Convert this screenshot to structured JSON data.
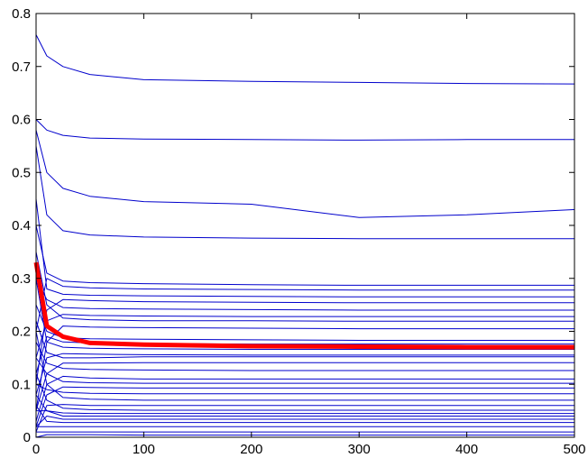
{
  "chart_data": {
    "type": "line",
    "title": "",
    "xlabel": "",
    "ylabel": "",
    "xlim": [
      0,
      500
    ],
    "ylim": [
      0,
      0.8
    ],
    "xticks": [
      0,
      100,
      200,
      300,
      400,
      500
    ],
    "yticks": [
      0,
      0.1,
      0.2,
      0.3,
      0.4,
      0.5,
      0.6,
      0.7,
      0.8
    ],
    "xtick_labels": [
      "0",
      "100",
      "200",
      "300",
      "400",
      "500"
    ],
    "ytick_labels": [
      "0",
      "0.1",
      "0.2",
      "0.3",
      "0.4",
      "0.5",
      "0.6",
      "0.7",
      "0.8"
    ],
    "grid": false,
    "legend": "none",
    "line_color": "#0000cc",
    "mean_color": "#ff0000",
    "x": [
      0,
      10,
      25,
      50,
      100,
      200,
      300,
      400,
      500
    ],
    "series": [
      {
        "values": [
          0.76,
          0.72,
          0.7,
          0.685,
          0.675,
          0.672,
          0.67,
          0.668,
          0.667
        ]
      },
      {
        "values": [
          0.6,
          0.58,
          0.57,
          0.565,
          0.563,
          0.562,
          0.561,
          0.562,
          0.562
        ]
      },
      {
        "values": [
          0.58,
          0.5,
          0.47,
          0.455,
          0.445,
          0.44,
          0.415,
          0.42,
          0.43
        ]
      },
      {
        "values": [
          0.55,
          0.42,
          0.39,
          0.382,
          0.378,
          0.376,
          0.375,
          0.375,
          0.375
        ]
      },
      {
        "values": [
          0.4,
          0.31,
          0.295,
          0.292,
          0.29,
          0.288,
          0.287,
          0.287,
          0.287
        ]
      },
      {
        "values": [
          0.2,
          0.3,
          0.285,
          0.282,
          0.28,
          0.279,
          0.278,
          0.278,
          0.278
        ]
      },
      {
        "values": [
          0.45,
          0.28,
          0.27,
          0.268,
          0.267,
          0.266,
          0.265,
          0.265,
          0.265
        ]
      },
      {
        "values": [
          0.1,
          0.24,
          0.26,
          0.258,
          0.256,
          0.255,
          0.254,
          0.254,
          0.254
        ]
      },
      {
        "values": [
          0.3,
          0.26,
          0.245,
          0.243,
          0.242,
          0.241,
          0.24,
          0.24,
          0.24
        ]
      },
      {
        "values": [
          0.15,
          0.22,
          0.232,
          0.23,
          0.229,
          0.228,
          0.228,
          0.228,
          0.228
        ]
      },
      {
        "values": [
          0.35,
          0.25,
          0.225,
          0.222,
          0.22,
          0.22,
          0.219,
          0.219,
          0.219
        ]
      },
      {
        "values": [
          0.05,
          0.18,
          0.21,
          0.208,
          0.207,
          0.206,
          0.205,
          0.205,
          0.205
        ]
      },
      {
        "values": [
          0.25,
          0.2,
          0.188,
          0.186,
          0.185,
          0.184,
          0.183,
          0.183,
          0.183
        ]
      },
      {
        "values": [
          0.12,
          0.19,
          0.18,
          0.178,
          0.177,
          0.176,
          0.176,
          0.176,
          0.176
        ]
      },
      {
        "values": [
          0.3,
          0.18,
          0.17,
          0.168,
          0.167,
          0.166,
          0.166,
          0.166,
          0.166
        ]
      },
      {
        "values": [
          0.08,
          0.15,
          0.158,
          0.157,
          0.156,
          0.155,
          0.155,
          0.155,
          0.155
        ]
      },
      {
        "values": [
          0.22,
          0.16,
          0.15,
          0.15,
          0.152,
          0.152,
          0.152,
          0.152,
          0.152
        ]
      },
      {
        "values": [
          0.05,
          0.12,
          0.14,
          0.14,
          0.141,
          0.141,
          0.141,
          0.141,
          0.141
        ]
      },
      {
        "values": [
          0.18,
          0.14,
          0.13,
          0.128,
          0.127,
          0.126,
          0.126,
          0.126,
          0.126
        ]
      },
      {
        "values": [
          0.03,
          0.1,
          0.115,
          0.112,
          0.11,
          0.11,
          0.11,
          0.11,
          0.11
        ]
      },
      {
        "values": [
          0.15,
          0.12,
          0.105,
          0.103,
          0.102,
          0.102,
          0.102,
          0.102,
          0.102
        ]
      },
      {
        "values": [
          0.02,
          0.08,
          0.095,
          0.094,
          0.093,
          0.093,
          0.093,
          0.093,
          0.093
        ]
      },
      {
        "values": [
          0.1,
          0.09,
          0.085,
          0.083,
          0.082,
          0.082,
          0.082,
          0.082,
          0.082
        ]
      },
      {
        "values": [
          0.2,
          0.1,
          0.075,
          0.072,
          0.07,
          0.07,
          0.07,
          0.07,
          0.07
        ]
      },
      {
        "values": [
          0.01,
          0.06,
          0.062,
          0.06,
          0.06,
          0.06,
          0.06,
          0.06,
          0.06
        ]
      },
      {
        "values": [
          0.12,
          0.07,
          0.055,
          0.052,
          0.051,
          0.051,
          0.051,
          0.051,
          0.051
        ]
      },
      {
        "values": [
          0.05,
          0.05,
          0.046,
          0.045,
          0.045,
          0.045,
          0.045,
          0.045,
          0.045
        ]
      },
      {
        "values": [
          0.08,
          0.05,
          0.04,
          0.04,
          0.04,
          0.04,
          0.04,
          0.04,
          0.04
        ]
      },
      {
        "values": [
          0.02,
          0.04,
          0.034,
          0.034,
          0.034,
          0.034,
          0.034,
          0.034,
          0.034
        ]
      },
      {
        "values": [
          0.06,
          0.03,
          0.028,
          0.028,
          0.028,
          0.028,
          0.028,
          0.028,
          0.028
        ]
      },
      {
        "values": [
          0.02,
          0.02,
          0.02,
          0.02,
          0.02,
          0.02,
          0.02,
          0.02,
          0.02
        ]
      },
      {
        "values": [
          0.01,
          0.01,
          0.01,
          0.01,
          0.01,
          0.01,
          0.01,
          0.01,
          0.01
        ]
      },
      {
        "values": [
          0.0,
          0.005,
          0.005,
          0.005,
          0.004,
          0.004,
          0.004,
          0.004,
          0.004
        ]
      }
    ],
    "mean_series": {
      "values": [
        0.33,
        0.21,
        0.19,
        0.178,
        0.175,
        0.172,
        0.171,
        0.17,
        0.17
      ]
    }
  }
}
